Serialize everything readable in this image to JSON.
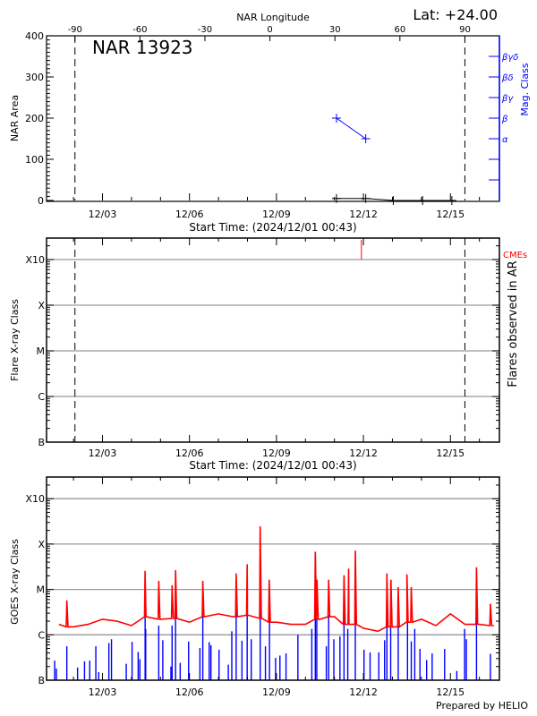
{
  "colors": {
    "axis": "#000000",
    "mag_class": "#0000ff",
    "cme": "#ff0000",
    "goes_long": "#ff0000",
    "goes_short": "#0000ff",
    "grid": "#999999"
  },
  "chart_data": [
    {
      "type": "line",
      "title": "NAR 13923",
      "annotation": "Lat: +24.00",
      "top_axis_label": "NAR Longitude",
      "top_ticks": [
        -90,
        -60,
        -30,
        0,
        30,
        60,
        90
      ],
      "xlabel": "Start Time: (2024/12/01 00:43)",
      "x_tick_labels": [
        "12/03",
        "12/06",
        "12/09",
        "12/12",
        "12/15"
      ],
      "x_tick_days": [
        2,
        5,
        8,
        11,
        14
      ],
      "xlim_days_since_12_01": [
        0.07,
        15.69
      ],
      "ylabel": "NAR Area",
      "ylim": [
        0,
        400
      ],
      "y_ticks": [
        0,
        100,
        200,
        300,
        400
      ],
      "y2label": "Mag. Class",
      "y2_classes": [
        "α",
        "β",
        "βγ",
        "βδ",
        "βγδ"
      ],
      "y2_class_values": [
        150,
        200,
        250,
        300,
        350
      ],
      "y2_extra_ticks": [
        50,
        100
      ],
      "limb_lines_days": [
        1.05,
        14.5
      ],
      "series": [
        {
          "name": "NAR Area",
          "x": [
            10.07,
            11.08,
            12.03,
            13.04,
            14.05
          ],
          "y": [
            5,
            5,
            0,
            0,
            0
          ]
        },
        {
          "name": "Mag. Class",
          "x": [
            10.07,
            11.08
          ],
          "y": [
            "β",
            "α"
          ]
        }
      ]
    },
    {
      "type": "scatter",
      "xlabel": "Start Time: (2024/12/01 00:43)",
      "x_tick_labels": [
        "12/03",
        "12/06",
        "12/09",
        "12/12",
        "12/15"
      ],
      "ylabel": "Flare X-ray Class",
      "y2label": "Flares observed in AR",
      "y_classes": [
        "B",
        "C",
        "M",
        "X",
        "X10"
      ],
      "grid": true,
      "limb_lines_days": [
        1.05,
        14.5
      ],
      "cme_label": "CMEs",
      "cmes_days": [
        10.93
      ],
      "flares": []
    },
    {
      "type": "line",
      "ylabel": "GOES X-ray Class",
      "x_tick_labels": [
        "12/03",
        "12/06",
        "12/09",
        "12/12",
        "12/15"
      ],
      "y_classes": [
        "B",
        "C",
        "M",
        "X",
        "X10"
      ],
      "grid": true,
      "footer": "Prepared by HELIO",
      "long_baseline_step_days": 0.5,
      "long_baseline_flux": [
        2e-06,
        1.7e-06,
        1.5e-06,
        1.7e-06,
        2.2e-06,
        2e-06,
        1.6e-06,
        2.5e-06,
        2.2e-06,
        2.3e-06,
        1.9e-06,
        2.5e-06,
        2.9e-06,
        2.5e-06,
        2.7e-06,
        2.3e-06,
        1.9e-06,
        1.7e-06,
        1.7e-06,
        2.2e-06,
        2.5e-06,
        1.7e-06,
        1.4e-06,
        1.2e-06,
        1.5e-06,
        1.9e-06,
        2.2e-06,
        1.6e-06,
        2.9e-06,
        1.7e-06,
        1.7e-06,
        1.6e-06
      ],
      "long_peaks": [
        [
          0.77,
          5.6e-06
        ],
        [
          3.47,
          2.5e-05
        ],
        [
          3.94,
          1.5e-05
        ],
        [
          4.4,
          1.2e-05
        ],
        [
          4.52,
          2.6e-05
        ],
        [
          5.46,
          1.5e-05
        ],
        [
          6.61,
          2.2e-05
        ],
        [
          6.99,
          3.5e-05
        ],
        [
          7.44,
          0.00024
        ],
        [
          7.75,
          1.6e-05
        ],
        [
          9.34,
          6.6e-05
        ],
        [
          9.4,
          1.6e-05
        ],
        [
          9.8,
          1.6e-05
        ],
        [
          10.33,
          2e-05
        ],
        [
          10.49,
          2.8e-05
        ],
        [
          10.72,
          7e-05
        ],
        [
          11.81,
          2.2e-05
        ],
        [
          11.95,
          1.6e-05
        ],
        [
          12.2,
          1.1e-05
        ],
        [
          12.5,
          2.1e-05
        ],
        [
          12.65,
          1.1e-05
        ],
        [
          14.9,
          3e-05
        ],
        [
          15.38,
          4.7e-06
        ]
      ],
      "short_spikes": [
        [
          0.35,
          2.7e-07
        ],
        [
          0.41,
          1.8e-07
        ],
        [
          0.77,
          5.6e-07
        ],
        [
          1.14,
          1.9e-07
        ],
        [
          1.38,
          2.6e-07
        ],
        [
          1.56,
          2.7e-07
        ],
        [
          1.77,
          5.6e-07
        ],
        [
          1.87,
          1.5e-07
        ],
        [
          2.22,
          6.6e-07
        ],
        [
          2.31,
          8e-07
        ],
        [
          2.82,
          2.3e-07
        ],
        [
          3.02,
          7e-07
        ],
        [
          3.23,
          4.2e-07
        ],
        [
          3.29,
          2.9e-07
        ],
        [
          3.47,
          4.3e-06
        ],
        [
          3.49,
          1.35e-06
        ],
        [
          3.94,
          1.6e-06
        ],
        [
          4.08,
          7.6e-07
        ],
        [
          4.36,
          2e-07
        ],
        [
          4.4,
          1.6e-06
        ],
        [
          4.52,
          5.1e-06
        ],
        [
          4.68,
          2.4e-07
        ],
        [
          4.97,
          7.1e-07
        ],
        [
          5.36,
          5.1e-07
        ],
        [
          5.46,
          3.2e-06
        ],
        [
          5.68,
          6.9e-07
        ],
        [
          5.74,
          5.9e-07
        ],
        [
          6.02,
          4.7e-07
        ],
        [
          6.34,
          2.2e-07
        ],
        [
          6.46,
          1.2e-06
        ],
        [
          6.61,
          5.6e-06
        ],
        [
          6.81,
          7.4e-07
        ],
        [
          6.99,
          6.6e-06
        ],
        [
          7.13,
          8e-07
        ],
        [
          7.44,
          8.5e-05
        ],
        [
          7.62,
          5.6e-07
        ],
        [
          7.76,
          3e-06
        ],
        [
          7.97,
          3.1e-07
        ],
        [
          8.12,
          3.5e-07
        ],
        [
          8.33,
          3.9e-07
        ],
        [
          8.74,
          1e-06
        ],
        [
          9.22,
          1.35e-06
        ],
        [
          9.34,
          1.4e-05
        ],
        [
          9.39,
          2.5e-06
        ],
        [
          9.72,
          5.6e-07
        ],
        [
          9.8,
          2.8e-06
        ],
        [
          9.98,
          8e-07
        ],
        [
          10.19,
          9.3e-07
        ],
        [
          10.33,
          2.9e-06
        ],
        [
          10.46,
          1.35e-06
        ],
        [
          10.72,
          1.9e-05
        ],
        [
          11.02,
          4.7e-07
        ],
        [
          11.23,
          4.1e-07
        ],
        [
          11.53,
          4.1e-07
        ],
        [
          11.73,
          7.6e-07
        ],
        [
          11.81,
          4.5e-06
        ],
        [
          11.94,
          2.8e-06
        ],
        [
          12.2,
          1.6e-06
        ],
        [
          12.52,
          6.6e-06
        ],
        [
          12.65,
          7.2e-07
        ],
        [
          12.77,
          1.35e-06
        ],
        [
          12.95,
          4.9e-07
        ],
        [
          13.18,
          2.8e-07
        ],
        [
          13.37,
          3.9e-07
        ],
        [
          13.8,
          4.9e-07
        ],
        [
          14.22,
          1.6e-07
        ],
        [
          14.49,
          1.35e-06
        ],
        [
          14.55,
          8e-07
        ],
        [
          14.9,
          6.9e-06
        ],
        [
          15.38,
          3.8e-07
        ]
      ]
    }
  ]
}
